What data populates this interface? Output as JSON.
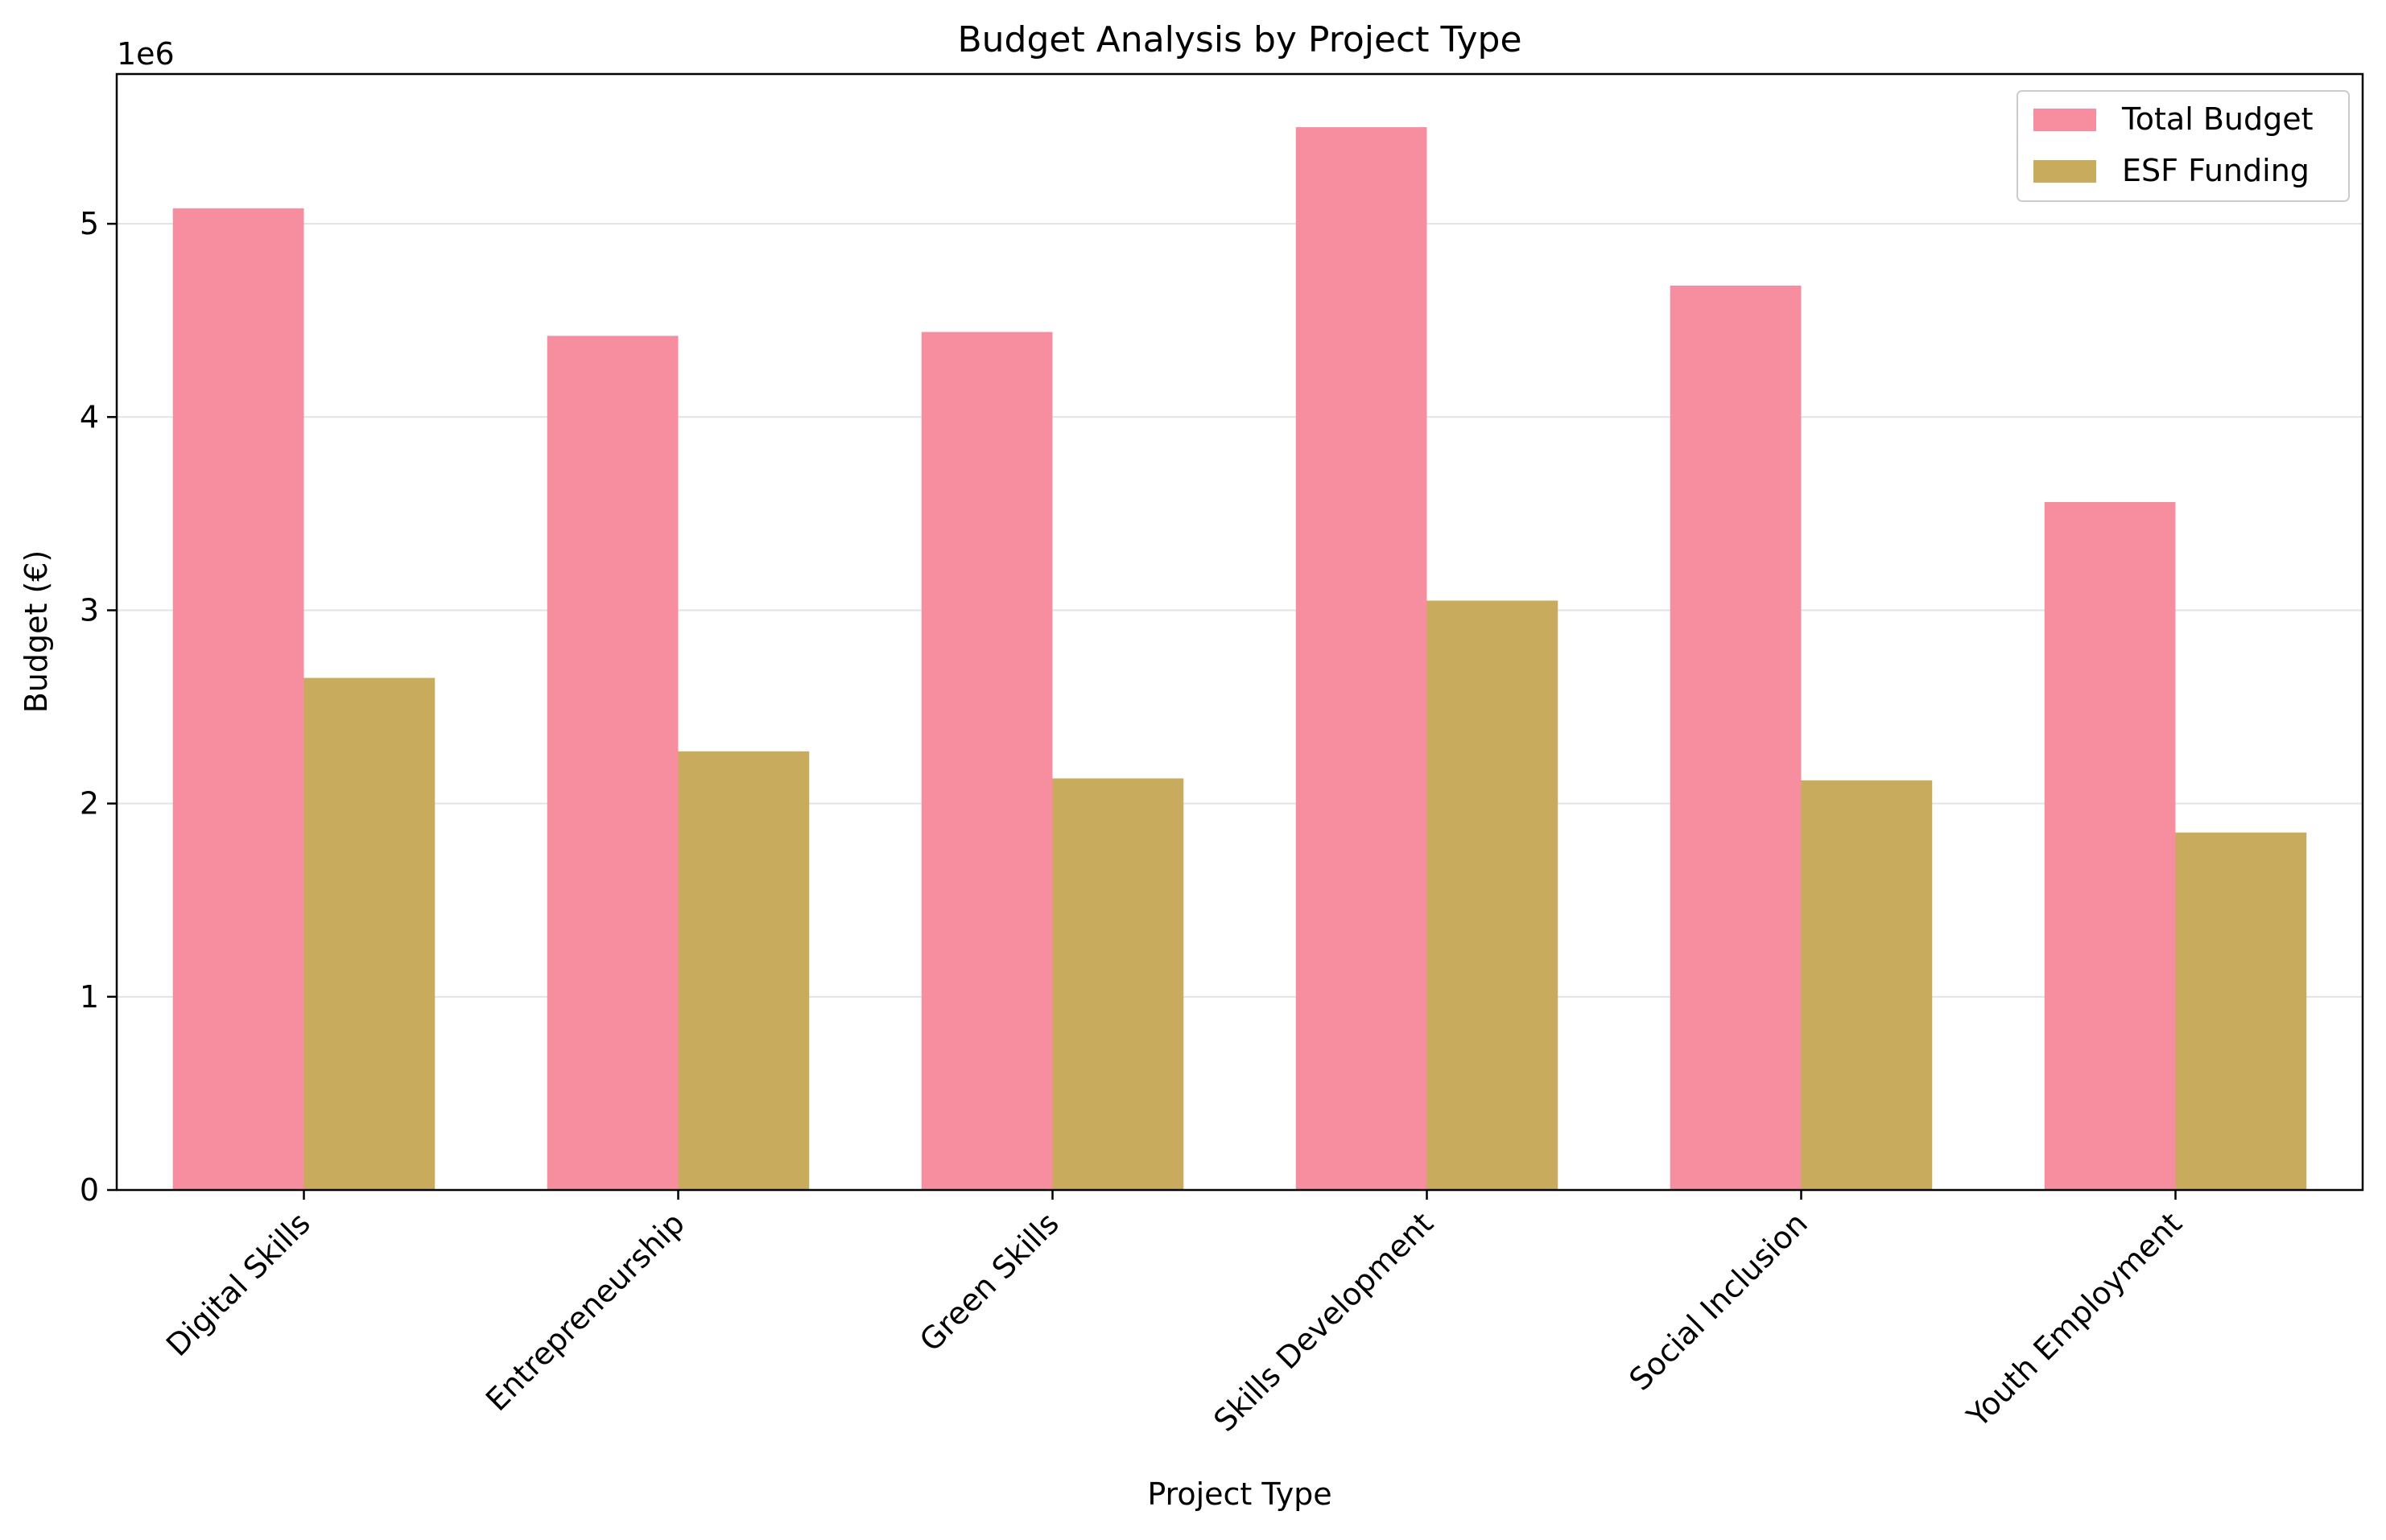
{
  "chart_data": {
    "type": "bar",
    "title": "Budget Analysis by Project Type",
    "xlabel": "Project Type",
    "ylabel": "Budget (€)",
    "y_offset_text": "1e6",
    "categories": [
      "Digital Skills",
      "Entrepreneurship",
      "Green Skills",
      "Skills Development",
      "Social Inclusion",
      "Youth Employment"
    ],
    "series": [
      {
        "name": "Total Budget",
        "color": "#f68ea0",
        "values": [
          5080000,
          4420000,
          4440000,
          5500000,
          4680000,
          3560000
        ]
      },
      {
        "name": "ESF Funding",
        "color": "#c8ab5c",
        "values": [
          2650000,
          2270000,
          2130000,
          3050000,
          2120000,
          1850000
        ]
      }
    ],
    "ylim": [
      0,
      5775000
    ],
    "yticks": [
      0,
      1000000,
      2000000,
      3000000,
      4000000,
      5000000
    ],
    "ytick_labels": [
      "0",
      "1",
      "2",
      "3",
      "4",
      "5"
    ],
    "grid": {
      "y": true,
      "x": false
    },
    "legend_position": "top-right"
  }
}
